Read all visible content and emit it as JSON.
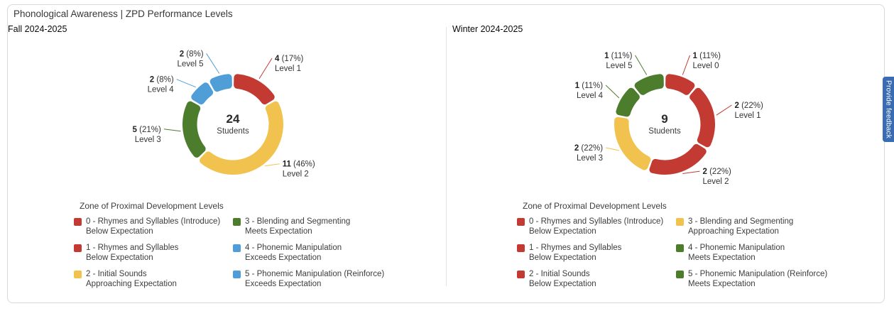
{
  "page": {
    "title": "Phonological Awareness | ZPD Performance Levels",
    "feedback_tab_label": "Provide feedback",
    "feedback_tab_color": "#3a6cb3"
  },
  "chart_data": [
    {
      "type": "pie",
      "subtype": "donut",
      "section_title": "Fall 2024-2025",
      "center_value": "24",
      "center_caption": "Students",
      "slices": [
        {
          "label": "Level 1",
          "value": 4,
          "pct": "17%",
          "color": "#c23a32"
        },
        {
          "label": "Level 2",
          "value": 11,
          "pct": "46%",
          "color": "#f2c24e"
        },
        {
          "label": "Level 3",
          "value": 5,
          "pct": "21%",
          "color": "#4c7d2d"
        },
        {
          "label": "Level 4",
          "value": 2,
          "pct": "8%",
          "color": "#4f9ed8"
        },
        {
          "label": "Level 5",
          "value": 2,
          "pct": "8%",
          "color": "#4f9ed8"
        }
      ],
      "legend": {
        "title": "Zone of Proximal Development Levels",
        "items": [
          {
            "color": "#c23a32",
            "skill": "0 - Rhymes and Syllables (Introduce)",
            "expectation": "Below Expectation"
          },
          {
            "color": "#c23a32",
            "skill": "1 - Rhymes and Syllables",
            "expectation": "Below Expectation"
          },
          {
            "color": "#f2c24e",
            "skill": "2 - Initial Sounds",
            "expectation": "Approaching Expectation"
          },
          {
            "color": "#4c7d2d",
            "skill": "3 - Blending and Segmenting",
            "expectation": "Meets Expectation"
          },
          {
            "color": "#4f9ed8",
            "skill": "4 - Phonemic Manipulation",
            "expectation": "Exceeds Expectation"
          },
          {
            "color": "#4f9ed8",
            "skill": "5 - Phonemic Manipulation (Reinforce)",
            "expectation": "Exceeds Expectation"
          }
        ]
      }
    },
    {
      "type": "pie",
      "subtype": "donut",
      "section_title": "Winter 2024-2025",
      "center_value": "9",
      "center_caption": "Students",
      "slices": [
        {
          "label": "Level 0",
          "value": 1,
          "pct": "11%",
          "color": "#c23a32"
        },
        {
          "label": "Level 1",
          "value": 2,
          "pct": "22%",
          "color": "#c23a32"
        },
        {
          "label": "Level 2",
          "value": 2,
          "pct": "22%",
          "color": "#c23a32"
        },
        {
          "label": "Level 3",
          "value": 2,
          "pct": "22%",
          "color": "#f2c24e"
        },
        {
          "label": "Level 4",
          "value": 1,
          "pct": "11%",
          "color": "#4c7d2d"
        },
        {
          "label": "Level 5",
          "value": 1,
          "pct": "11%",
          "color": "#4c7d2d"
        }
      ],
      "legend": {
        "title": "Zone of Proximal Development Levels",
        "items": [
          {
            "color": "#c23a32",
            "skill": "0 - Rhymes and Syllables (Introduce)",
            "expectation": "Below Expectation"
          },
          {
            "color": "#c23a32",
            "skill": "1 - Rhymes and Syllables",
            "expectation": "Below Expectation"
          },
          {
            "color": "#c23a32",
            "skill": "2 - Initial Sounds",
            "expectation": "Below Expectation"
          },
          {
            "color": "#f2c24e",
            "skill": "3 - Blending and Segmenting",
            "expectation": "Approaching Expectation"
          },
          {
            "color": "#4c7d2d",
            "skill": "4 - Phonemic Manipulation",
            "expectation": "Meets Expectation"
          },
          {
            "color": "#4c7d2d",
            "skill": "5 - Phonemic Manipulation (Reinforce)",
            "expectation": "Meets Expectation"
          }
        ]
      }
    }
  ]
}
